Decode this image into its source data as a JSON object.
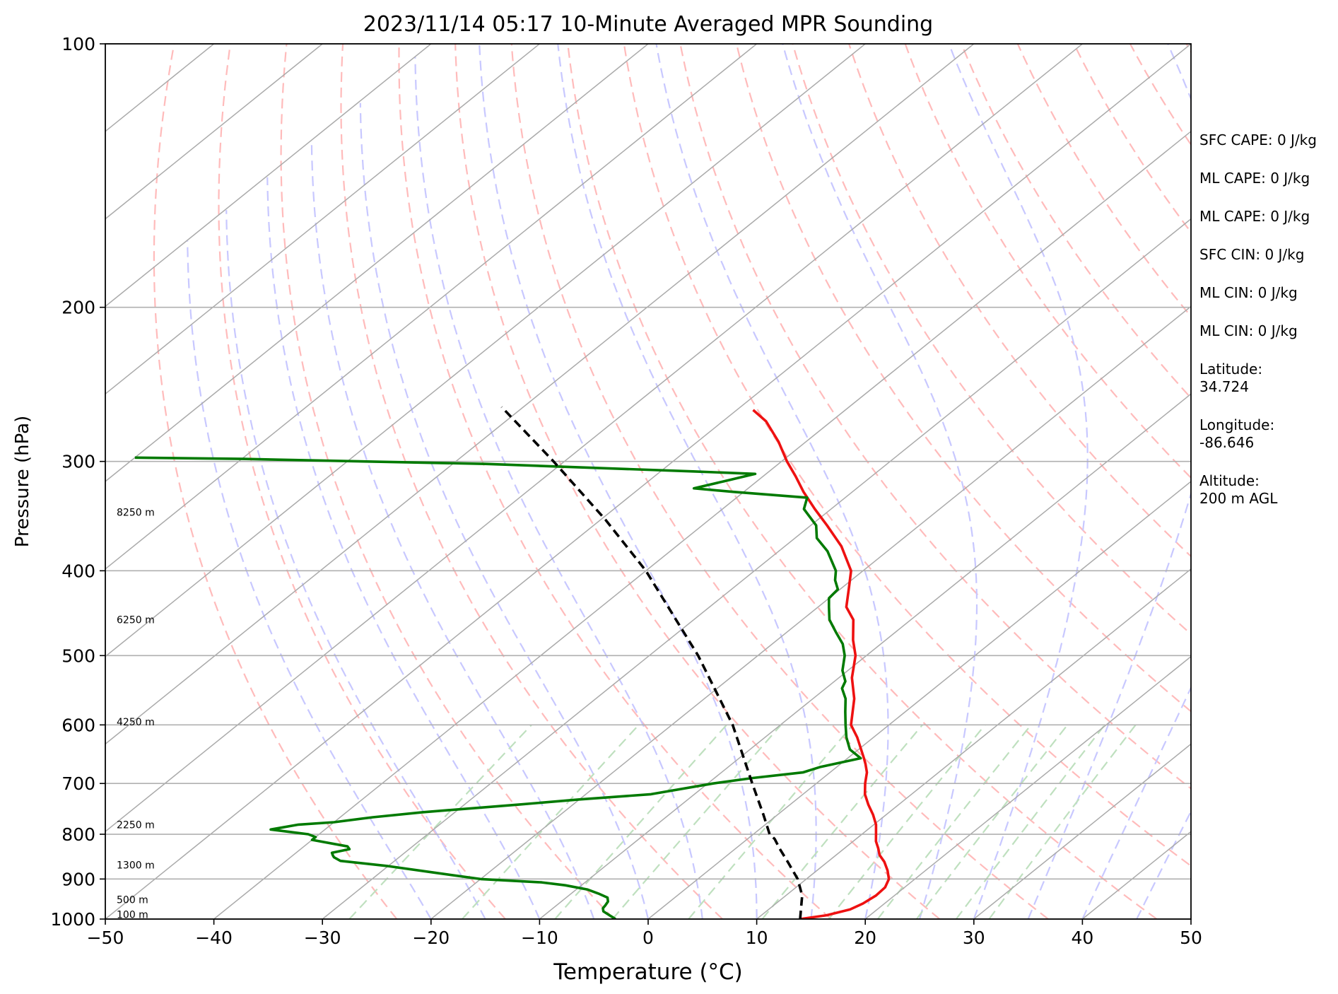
{
  "chart_data": {
    "type": "line",
    "title": "2023/11/14 05:17 10-Minute Averaged MPR Sounding",
    "xlabel": "Temperature (°C)",
    "ylabel": "Pressure (hPa)",
    "xlim": [
      -50,
      50
    ],
    "ylim": [
      1000,
      100
    ],
    "y_scale": "log",
    "skew_t": true,
    "x_ticks": [
      "−50",
      "−40",
      "−30",
      "−20",
      "−10",
      "0",
      "10",
      "20",
      "30",
      "40",
      "50"
    ],
    "x_tick_values": [
      -50,
      -40,
      -30,
      -20,
      -10,
      0,
      10,
      20,
      30,
      40,
      50
    ],
    "y_ticks": [
      "1000",
      "900",
      "800",
      "700",
      "600",
      "500",
      "400",
      "300",
      "200",
      "100"
    ],
    "y_tick_values": [
      1000,
      900,
      800,
      700,
      600,
      500,
      400,
      300,
      200,
      100
    ],
    "grid": "horizontal at pressure ticks",
    "height_labels": [
      {
        "text": "100 m",
        "p": 988
      },
      {
        "text": "500 m",
        "p": 950
      },
      {
        "text": "1300 m",
        "p": 867
      },
      {
        "text": "2250 m",
        "p": 780
      },
      {
        "text": "4250 m",
        "p": 595
      },
      {
        "text": "6250 m",
        "p": 455
      },
      {
        "text": "8250 m",
        "p": 343
      }
    ],
    "series": [
      {
        "color": "#ee1111",
        "points": [
          [
            1000,
            14
          ],
          [
            990,
            16
          ],
          [
            975,
            17.5
          ],
          [
            960,
            18
          ],
          [
            940,
            18.3
          ],
          [
            920,
            18.2
          ],
          [
            900,
            17.6
          ],
          [
            880,
            16.5
          ],
          [
            860,
            15.2
          ],
          [
            845,
            14
          ],
          [
            830,
            13.1
          ],
          [
            815,
            12.1
          ],
          [
            800,
            11.3
          ],
          [
            780,
            10.2
          ],
          [
            760,
            8.8
          ],
          [
            740,
            7.2
          ],
          [
            720,
            5.7
          ],
          [
            700,
            4.5
          ],
          [
            680,
            3.4
          ],
          [
            665,
            2.3
          ],
          [
            655,
            1.5
          ],
          [
            620,
            -1.5
          ],
          [
            600,
            -3.5
          ],
          [
            560,
            -6.2
          ],
          [
            530,
            -8.8
          ],
          [
            500,
            -11.0
          ],
          [
            480,
            -13.0
          ],
          [
            455,
            -15.3
          ],
          [
            440,
            -17.4
          ],
          [
            420,
            -19.2
          ],
          [
            400,
            -21.1
          ],
          [
            375,
            -24.8
          ],
          [
            355,
            -28.5
          ],
          [
            340,
            -31.5
          ],
          [
            325,
            -34.5
          ],
          [
            312,
            -37.0
          ],
          [
            300,
            -39.5
          ],
          [
            285,
            -42.5
          ],
          [
            270,
            -46
          ],
          [
            262,
            -48.5
          ]
        ]
      },
      {
        "color": "#007a00",
        "points": [
          [
            1000,
            -3
          ],
          [
            995,
            -3.5
          ],
          [
            990,
            -4
          ],
          [
            980,
            -5
          ],
          [
            972,
            -5.4
          ],
          [
            965,
            -5.5
          ],
          [
            955,
            -5.7
          ],
          [
            945,
            -6.2
          ],
          [
            935,
            -7.5
          ],
          [
            925,
            -9
          ],
          [
            915,
            -11.5
          ],
          [
            908,
            -14
          ],
          [
            900,
            -20
          ],
          [
            885,
            -25
          ],
          [
            870,
            -30
          ],
          [
            858,
            -35
          ],
          [
            850,
            -36
          ],
          [
            846,
            -36.3
          ],
          [
            840,
            -36.7
          ],
          [
            832,
            -35.5
          ],
          [
            826,
            -36
          ],
          [
            812,
            -40
          ],
          [
            806,
            -40
          ],
          [
            800,
            -41
          ],
          [
            795,
            -43
          ],
          [
            790,
            -45
          ],
          [
            780,
            -43
          ],
          [
            775,
            -40
          ],
          [
            765,
            -37
          ],
          [
            755,
            -33
          ],
          [
            740,
            -25
          ],
          [
            730,
            -20
          ],
          [
            720,
            -14
          ],
          [
            700,
            -9.5
          ],
          [
            690,
            -6.5
          ],
          [
            680,
            -2.5
          ],
          [
            670,
            -1.5
          ],
          [
            655,
            1.2
          ],
          [
            640,
            -0.8
          ],
          [
            620,
            -2.5
          ],
          [
            600,
            -4
          ],
          [
            580,
            -5.5
          ],
          [
            560,
            -7
          ],
          [
            545,
            -8.5
          ],
          [
            535,
            -9
          ],
          [
            520,
            -10.5
          ],
          [
            500,
            -12
          ],
          [
            485,
            -13.5
          ],
          [
            470,
            -15.5
          ],
          [
            455,
            -17.5
          ],
          [
            440,
            -19
          ],
          [
            430,
            -20
          ],
          [
            420,
            -20.2
          ],
          [
            410,
            -21.5
          ],
          [
            400,
            -22.5
          ],
          [
            380,
            -25.5
          ],
          [
            367,
            -28
          ],
          [
            355,
            -29.5
          ],
          [
            340,
            -32.5
          ],
          [
            330,
            -33.5
          ],
          [
            325,
            -41
          ],
          [
            322,
            -45
          ],
          [
            316,
            -43
          ],
          [
            310,
            -41
          ],
          [
            308,
            -47
          ],
          [
            302,
            -67
          ],
          [
            298,
            -90
          ],
          [
            297,
            -100
          ]
        ]
      },
      {
        "color": "#000000",
        "dashed": true,
        "points": [
          [
            1000,
            14
          ],
          [
            940,
            11.5
          ],
          [
            900,
            9.2
          ],
          [
            860,
            6.3
          ],
          [
            830,
            4
          ],
          [
            810,
            2.5
          ],
          [
            800,
            1.5
          ],
          [
            760,
            -1.3
          ],
          [
            700,
            -5.9
          ],
          [
            600,
            -14.4
          ],
          [
            500,
            -25.5
          ],
          [
            400,
            -40
          ],
          [
            350,
            -49.5
          ],
          [
            300,
            -61
          ],
          [
            260,
            -72
          ]
        ]
      }
    ],
    "reference_lines": {
      "isotherms_color": "#aaaaaa",
      "dry_adiabats_color": "#ffbbbb",
      "moist_adiabats_color": "#c8c8ff",
      "mixing_ratio_color": "#bfe0bf"
    }
  },
  "info_panel": [
    "SFC CAPE: 0 J/kg",
    "ML CAPE: 0 J/kg",
    "ML CAPE: 0 J/kg",
    "SFC CIN: 0 J/kg",
    "ML CIN: 0 J/kg",
    "ML CIN: 0 J/kg",
    "Latitude:\n34.724",
    "Longitude:\n-86.646",
    "Altitude:\n200 m AGL"
  ]
}
